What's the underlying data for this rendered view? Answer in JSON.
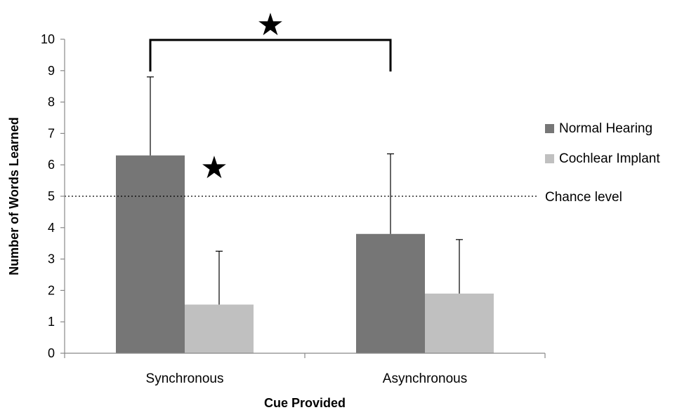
{
  "chart_data": {
    "type": "bar",
    "categories": [
      "Synchronous",
      "Asynchronous"
    ],
    "series": [
      {
        "name": "Normal Hearing",
        "values": [
          6.3,
          3.8
        ],
        "error_plus": [
          2.5,
          2.55
        ],
        "color": "#767676"
      },
      {
        "name": "Cochlear Implant",
        "values": [
          1.55,
          1.9
        ],
        "error_plus": [
          1.7,
          1.72
        ],
        "color": "#c0c0c0"
      }
    ],
    "xlabel": "Cue Provided",
    "ylabel": "Number of Words Learned",
    "ylim": [
      0,
      10
    ],
    "yticks": [
      "0",
      "1",
      "2",
      "3",
      "4",
      "5",
      "6",
      "7",
      "8",
      "9",
      "10"
    ],
    "grid": false,
    "legend_position": "right",
    "reference_line": {
      "label": "Chance level",
      "value": 5
    },
    "annotations": [
      {
        "symbol": "★",
        "meaning": "significance between Synchronous and Asynchronous (Normal Hearing)"
      },
      {
        "symbol": "★",
        "meaning": "Normal Hearing Synchronous above chance"
      }
    ]
  }
}
